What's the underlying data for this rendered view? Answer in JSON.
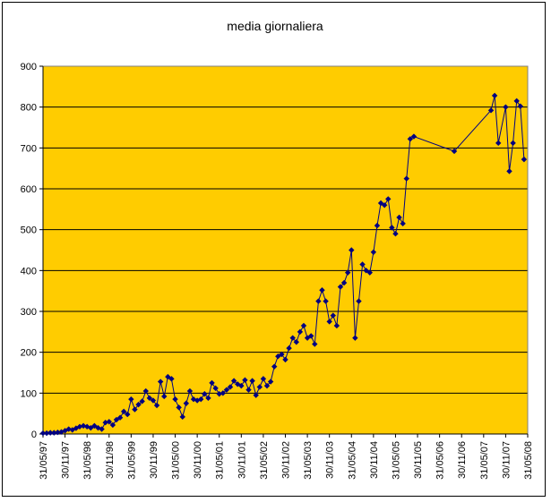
{
  "chart_data": {
    "type": "line",
    "title": "media giornaliera",
    "xlabel": "",
    "ylabel": "",
    "ylim": [
      0,
      900
    ],
    "yticks": [
      0,
      100,
      200,
      300,
      400,
      500,
      600,
      700,
      800,
      900
    ],
    "x_tick_labels": [
      "31/05/97",
      "30/11/97",
      "31/05/98",
      "30/11/98",
      "31/05/99",
      "30/11/99",
      "31/05/00",
      "30/11/00",
      "31/05/01",
      "30/11/01",
      "31/05/02",
      "30/11/02",
      "31/05/03",
      "30/11/03",
      "31/05/04",
      "30/11/04",
      "31/05/05",
      "30/11/05",
      "31/05/06",
      "30/11/06",
      "31/05/07",
      "30/11/07",
      "31/05/08"
    ],
    "x_range_months": [
      0,
      132
    ],
    "grid": true,
    "legend": "none",
    "colors": {
      "plot_bg": "#FFCC00",
      "line": "#000080",
      "marker": "#000080",
      "grid": "#000000"
    },
    "series": [
      {
        "marker": "diamond",
        "points": [
          [
            0,
            2
          ],
          [
            1,
            2
          ],
          [
            2,
            3
          ],
          [
            3,
            3
          ],
          [
            4,
            4
          ],
          [
            5,
            5
          ],
          [
            6,
            8
          ],
          [
            7,
            12
          ],
          [
            8,
            10
          ],
          [
            9,
            14
          ],
          [
            10,
            18
          ],
          [
            11,
            20
          ],
          [
            12,
            18
          ],
          [
            13,
            15
          ],
          [
            14,
            20
          ],
          [
            15,
            15
          ],
          [
            16,
            12
          ],
          [
            17,
            28
          ],
          [
            18,
            30
          ],
          [
            19,
            22
          ],
          [
            20,
            35
          ],
          [
            21,
            40
          ],
          [
            22,
            55
          ],
          [
            23,
            48
          ],
          [
            24,
            85
          ],
          [
            25,
            60
          ],
          [
            26,
            72
          ],
          [
            27,
            80
          ],
          [
            28,
            105
          ],
          [
            29,
            88
          ],
          [
            30,
            82
          ],
          [
            31,
            70
          ],
          [
            32,
            128
          ],
          [
            33,
            92
          ],
          [
            34,
            140
          ],
          [
            35,
            135
          ],
          [
            36,
            85
          ],
          [
            37,
            65
          ],
          [
            38,
            42
          ],
          [
            39,
            75
          ],
          [
            40,
            105
          ],
          [
            41,
            85
          ],
          [
            42,
            82
          ],
          [
            43,
            85
          ],
          [
            44,
            98
          ],
          [
            45,
            88
          ],
          [
            46,
            125
          ],
          [
            47,
            112
          ],
          [
            48,
            98
          ],
          [
            49,
            100
          ],
          [
            50,
            108
          ],
          [
            51,
            115
          ],
          [
            52,
            130
          ],
          [
            53,
            122
          ],
          [
            54,
            118
          ],
          [
            55,
            132
          ],
          [
            56,
            108
          ],
          [
            57,
            130
          ],
          [
            58,
            95
          ],
          [
            59,
            115
          ],
          [
            60,
            135
          ],
          [
            61,
            118
          ],
          [
            62,
            128
          ],
          [
            63,
            165
          ],
          [
            64,
            190
          ],
          [
            65,
            195
          ],
          [
            66,
            182
          ],
          [
            67,
            210
          ],
          [
            68,
            235
          ],
          [
            69,
            225
          ],
          [
            70,
            250
          ],
          [
            71,
            265
          ],
          [
            72,
            235
          ],
          [
            73,
            240
          ],
          [
            74,
            220
          ],
          [
            75,
            325
          ],
          [
            76,
            352
          ],
          [
            77,
            325
          ],
          [
            78,
            275
          ],
          [
            79,
            290
          ],
          [
            80,
            265
          ],
          [
            81,
            360
          ],
          [
            82,
            370
          ],
          [
            83,
            395
          ],
          [
            84,
            450
          ],
          [
            85,
            235
          ],
          [
            86,
            325
          ],
          [
            87,
            415
          ],
          [
            88,
            400
          ],
          [
            89,
            395
          ],
          [
            90,
            445
          ],
          [
            91,
            510
          ],
          [
            92,
            565
          ],
          [
            93,
            560
          ],
          [
            94,
            575
          ],
          [
            95,
            505
          ],
          [
            96,
            490
          ],
          [
            97,
            530
          ],
          [
            98,
            515
          ],
          [
            99,
            625
          ],
          [
            100,
            722
          ],
          [
            101,
            728
          ],
          [
            112,
            692
          ],
          [
            122,
            792
          ],
          [
            123,
            828
          ],
          [
            124,
            712
          ],
          [
            126,
            800
          ],
          [
            127,
            643
          ],
          [
            128,
            712
          ],
          [
            129,
            815
          ],
          [
            130,
            802
          ],
          [
            131,
            672
          ]
        ]
      }
    ]
  }
}
